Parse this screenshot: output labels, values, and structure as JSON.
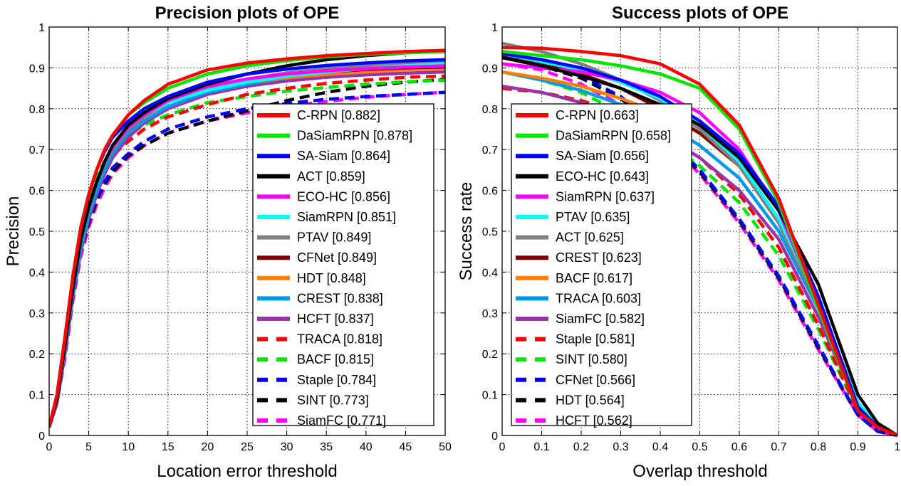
{
  "chart_data": [
    {
      "type": "line",
      "title": "Precision plots of OPE",
      "xlabel": "Location error threshold",
      "ylabel": "Precision",
      "xlim": [
        0,
        50
      ],
      "ylim": [
        0,
        1
      ],
      "xticks": [
        0,
        5,
        10,
        15,
        20,
        25,
        30,
        35,
        40,
        45,
        50
      ],
      "yticks": [
        0,
        0.1,
        0.2,
        0.3,
        0.4,
        0.5,
        0.6,
        0.7,
        0.8,
        0.9,
        1
      ],
      "ytick_labels": [
        "0",
        "0.1",
        "0.2",
        "0.3",
        "0.4",
        "0.5",
        "0.6",
        "0.7",
        "0.8",
        "0.9",
        "1"
      ],
      "grid": true,
      "legend_position": "lower-right",
      "x": [
        0,
        1,
        2,
        3,
        4,
        5,
        6,
        7,
        8,
        10,
        12,
        15,
        20,
        25,
        30,
        35,
        40,
        45,
        50
      ],
      "series": [
        {
          "name": "C-RPN",
          "score": "[0.882]",
          "color": "#ff0000",
          "dashed": false,
          "values": [
            0.02,
            0.1,
            0.24,
            0.39,
            0.51,
            0.59,
            0.65,
            0.7,
            0.735,
            0.785,
            0.82,
            0.86,
            0.895,
            0.912,
            0.922,
            0.93,
            0.935,
            0.94,
            0.943
          ]
        },
        {
          "name": "DaSiamRPN",
          "score": "[0.878]",
          "color": "#00e600",
          "dashed": false,
          "values": [
            0.02,
            0.1,
            0.24,
            0.39,
            0.51,
            0.59,
            0.65,
            0.7,
            0.735,
            0.785,
            0.815,
            0.85,
            0.885,
            0.905,
            0.918,
            0.927,
            0.933,
            0.937,
            0.94
          ]
        },
        {
          "name": "SA-Siam",
          "score": "[0.864]",
          "color": "#0000ff",
          "dashed": false,
          "values": [
            0.02,
            0.1,
            0.24,
            0.39,
            0.51,
            0.59,
            0.65,
            0.695,
            0.73,
            0.77,
            0.8,
            0.83,
            0.865,
            0.885,
            0.897,
            0.906,
            0.912,
            0.917,
            0.92
          ]
        },
        {
          "name": "ACT",
          "score": "[0.859]",
          "color": "#000000",
          "dashed": false,
          "values": [
            0.02,
            0.09,
            0.22,
            0.36,
            0.48,
            0.56,
            0.62,
            0.67,
            0.71,
            0.76,
            0.79,
            0.825,
            0.86,
            0.885,
            0.905,
            0.92,
            0.93,
            0.937,
            0.942
          ]
        },
        {
          "name": "ECO-HC",
          "score": "[0.856]",
          "color": "#ff00ff",
          "dashed": false,
          "values": [
            0.02,
            0.09,
            0.22,
            0.37,
            0.48,
            0.56,
            0.62,
            0.67,
            0.705,
            0.755,
            0.785,
            0.82,
            0.855,
            0.873,
            0.885,
            0.893,
            0.898,
            0.902,
            0.905
          ]
        },
        {
          "name": "SiamRPN",
          "score": "[0.851]",
          "color": "#00ffff",
          "dashed": false,
          "values": [
            0.02,
            0.09,
            0.22,
            0.37,
            0.48,
            0.56,
            0.62,
            0.67,
            0.705,
            0.755,
            0.785,
            0.815,
            0.845,
            0.865,
            0.88,
            0.89,
            0.898,
            0.905,
            0.91
          ]
        },
        {
          "name": "PTAV",
          "score": "[0.849]",
          "color": "#808080",
          "dashed": false,
          "values": [
            0.02,
            0.09,
            0.22,
            0.37,
            0.48,
            0.56,
            0.62,
            0.665,
            0.7,
            0.75,
            0.78,
            0.815,
            0.85,
            0.872,
            0.888,
            0.898,
            0.905,
            0.91,
            0.913
          ]
        },
        {
          "name": "CFNet",
          "score": "[0.849]",
          "color": "#800000",
          "dashed": false,
          "values": [
            0.02,
            0.09,
            0.22,
            0.37,
            0.48,
            0.56,
            0.62,
            0.665,
            0.7,
            0.75,
            0.78,
            0.815,
            0.85,
            0.87,
            0.882,
            0.89,
            0.896,
            0.9,
            0.902
          ]
        },
        {
          "name": "HDT",
          "score": "[0.848]",
          "color": "#ff8000",
          "dashed": false,
          "values": [
            0.02,
            0.09,
            0.22,
            0.37,
            0.48,
            0.56,
            0.62,
            0.665,
            0.7,
            0.75,
            0.78,
            0.815,
            0.848,
            0.865,
            0.876,
            0.884,
            0.89,
            0.895,
            0.898
          ]
        },
        {
          "name": "CREST",
          "score": "[0.838]",
          "color": "#0099e6",
          "dashed": false,
          "values": [
            0.02,
            0.09,
            0.21,
            0.35,
            0.46,
            0.54,
            0.6,
            0.65,
            0.69,
            0.74,
            0.77,
            0.805,
            0.84,
            0.86,
            0.875,
            0.885,
            0.892,
            0.898,
            0.902
          ]
        },
        {
          "name": "HCFT",
          "score": "[0.837]",
          "color": "#9933aa",
          "dashed": false,
          "values": [
            0.02,
            0.08,
            0.2,
            0.34,
            0.45,
            0.53,
            0.59,
            0.64,
            0.68,
            0.73,
            0.765,
            0.8,
            0.835,
            0.855,
            0.868,
            0.877,
            0.883,
            0.887,
            0.89
          ]
        },
        {
          "name": "TRACA",
          "score": "[0.818]",
          "color": "#ff0000",
          "dashed": true,
          "values": [
            0.02,
            0.09,
            0.22,
            0.36,
            0.47,
            0.55,
            0.61,
            0.65,
            0.685,
            0.72,
            0.75,
            0.78,
            0.81,
            0.835,
            0.85,
            0.862,
            0.87,
            0.877,
            0.88
          ]
        },
        {
          "name": "BACF",
          "score": "[0.815]",
          "color": "#00e600",
          "dashed": true,
          "values": [
            0.02,
            0.1,
            0.24,
            0.39,
            0.5,
            0.58,
            0.635,
            0.67,
            0.7,
            0.735,
            0.76,
            0.785,
            0.815,
            0.83,
            0.843,
            0.852,
            0.86,
            0.866,
            0.87
          ]
        },
        {
          "name": "Staple",
          "score": "[0.784]",
          "color": "#0000ff",
          "dashed": true,
          "values": [
            0.02,
            0.09,
            0.21,
            0.35,
            0.45,
            0.53,
            0.58,
            0.62,
            0.655,
            0.69,
            0.72,
            0.75,
            0.78,
            0.8,
            0.813,
            0.823,
            0.83,
            0.835,
            0.84
          ]
        },
        {
          "name": "SINT",
          "score": "[0.773]",
          "color": "#000000",
          "dashed": true,
          "values": [
            0.02,
            0.08,
            0.2,
            0.34,
            0.45,
            0.52,
            0.575,
            0.615,
            0.645,
            0.685,
            0.71,
            0.74,
            0.77,
            0.795,
            0.82,
            0.84,
            0.855,
            0.865,
            0.872
          ]
        },
        {
          "name": "SiamFC",
          "score": "[0.771]",
          "color": "#ff00ff",
          "dashed": true,
          "values": [
            0.02,
            0.08,
            0.19,
            0.33,
            0.44,
            0.51,
            0.565,
            0.605,
            0.64,
            0.68,
            0.71,
            0.74,
            0.77,
            0.79,
            0.805,
            0.818,
            0.828,
            0.835,
            0.84
          ]
        }
      ]
    },
    {
      "type": "line",
      "title": "Success plots of OPE",
      "xlabel": "Overlap threshold",
      "ylabel": "Success rate",
      "xlim": [
        0,
        1
      ],
      "ylim": [
        0,
        1
      ],
      "xticks": [
        0,
        0.1,
        0.2,
        0.3,
        0.4,
        0.5,
        0.6,
        0.7,
        0.8,
        0.9,
        1
      ],
      "xtick_labels": [
        "0",
        "0.1",
        "0.2",
        "0.3",
        "0.4",
        "0.5",
        "0.6",
        "0.7",
        "0.8",
        "0.9",
        "1"
      ],
      "yticks": [
        0,
        0.1,
        0.2,
        0.3,
        0.4,
        0.5,
        0.6,
        0.7,
        0.8,
        0.9,
        1
      ],
      "ytick_labels": [
        "0",
        "0.1",
        "0.2",
        "0.3",
        "0.4",
        "0.5",
        "0.6",
        "0.7",
        "0.8",
        "0.9",
        "1"
      ],
      "grid": true,
      "legend_position": "lower-left",
      "x": [
        0,
        0.1,
        0.2,
        0.3,
        0.4,
        0.5,
        0.6,
        0.7,
        0.8,
        0.9,
        0.95,
        1.0
      ],
      "series": [
        {
          "name": "C-RPN",
          "score": "[0.663]",
          "color": "#ff0000",
          "dashed": false,
          "values": [
            0.95,
            0.948,
            0.94,
            0.93,
            0.91,
            0.86,
            0.76,
            0.58,
            0.32,
            0.06,
            0.02,
            0.0
          ]
        },
        {
          "name": "DaSiamRPN",
          "score": "[0.658]",
          "color": "#00e600",
          "dashed": false,
          "values": [
            0.94,
            0.93,
            0.92,
            0.905,
            0.885,
            0.85,
            0.75,
            0.57,
            0.31,
            0.06,
            0.02,
            0.0
          ]
        },
        {
          "name": "SA-Siam",
          "score": "[0.656]",
          "color": "#0000ff",
          "dashed": false,
          "values": [
            0.935,
            0.92,
            0.9,
            0.87,
            0.83,
            0.77,
            0.69,
            0.56,
            0.34,
            0.07,
            0.02,
            0.0
          ]
        },
        {
          "name": "ECO-HC",
          "score": "[0.643]",
          "color": "#000000",
          "dashed": false,
          "values": [
            0.925,
            0.905,
            0.88,
            0.85,
            0.81,
            0.76,
            0.68,
            0.55,
            0.37,
            0.1,
            0.03,
            0.0
          ]
        },
        {
          "name": "SiamRPN",
          "score": "[0.637]",
          "color": "#ff00ff",
          "dashed": false,
          "values": [
            0.91,
            0.9,
            0.89,
            0.87,
            0.84,
            0.79,
            0.7,
            0.55,
            0.32,
            0.06,
            0.02,
            0.0
          ]
        },
        {
          "name": "PTAV",
          "score": "[0.635]",
          "color": "#00ffff",
          "dashed": false,
          "values": [
            0.935,
            0.915,
            0.895,
            0.865,
            0.825,
            0.76,
            0.67,
            0.53,
            0.33,
            0.08,
            0.02,
            0.0
          ]
        },
        {
          "name": "ACT",
          "score": "[0.625]",
          "color": "#808080",
          "dashed": false,
          "values": [
            0.96,
            0.94,
            0.91,
            0.87,
            0.82,
            0.75,
            0.66,
            0.52,
            0.32,
            0.08,
            0.02,
            0.0
          ]
        },
        {
          "name": "CREST",
          "score": "[0.623]",
          "color": "#800000",
          "dashed": false,
          "values": [
            0.93,
            0.91,
            0.885,
            0.85,
            0.8,
            0.74,
            0.66,
            0.52,
            0.32,
            0.08,
            0.02,
            0.0
          ]
        },
        {
          "name": "BACF",
          "score": "[0.617]",
          "color": "#ff8000",
          "dashed": false,
          "values": [
            0.89,
            0.875,
            0.855,
            0.825,
            0.79,
            0.74,
            0.66,
            0.53,
            0.33,
            0.08,
            0.02,
            0.0
          ]
        },
        {
          "name": "TRACA",
          "score": "[0.603]",
          "color": "#0099e6",
          "dashed": false,
          "values": [
            0.89,
            0.87,
            0.845,
            0.81,
            0.77,
            0.71,
            0.63,
            0.5,
            0.31,
            0.07,
            0.02,
            0.0
          ]
        },
        {
          "name": "SiamFC",
          "score": "[0.582]",
          "color": "#9933aa",
          "dashed": false,
          "values": [
            0.855,
            0.84,
            0.815,
            0.78,
            0.74,
            0.68,
            0.6,
            0.48,
            0.29,
            0.07,
            0.02,
            0.0
          ]
        },
        {
          "name": "Staple",
          "score": "[0.581]",
          "color": "#ff0000",
          "dashed": true,
          "values": [
            0.85,
            0.84,
            0.82,
            0.79,
            0.74,
            0.68,
            0.59,
            0.46,
            0.27,
            0.06,
            0.02,
            0.0
          ]
        },
        {
          "name": "SINT",
          "score": "[0.580]",
          "color": "#00e600",
          "dashed": true,
          "values": [
            0.89,
            0.87,
            0.84,
            0.79,
            0.73,
            0.66,
            0.57,
            0.44,
            0.26,
            0.06,
            0.02,
            0.0
          ]
        },
        {
          "name": "CFNet",
          "score": "[0.566]",
          "color": "#0000ff",
          "dashed": true,
          "values": [
            0.93,
            0.91,
            0.88,
            0.83,
            0.75,
            0.65,
            0.53,
            0.39,
            0.22,
            0.05,
            0.01,
            0.0
          ]
        },
        {
          "name": "HDT",
          "score": "[0.564]",
          "color": "#000000",
          "dashed": true,
          "values": [
            0.925,
            0.905,
            0.875,
            0.825,
            0.745,
            0.645,
            0.525,
            0.385,
            0.215,
            0.05,
            0.01,
            0.0
          ]
        },
        {
          "name": "HCFT",
          "score": "[0.562]",
          "color": "#ff00ff",
          "dashed": true,
          "values": [
            0.91,
            0.895,
            0.86,
            0.81,
            0.735,
            0.64,
            0.52,
            0.38,
            0.21,
            0.05,
            0.01,
            0.0
          ]
        }
      ]
    }
  ]
}
